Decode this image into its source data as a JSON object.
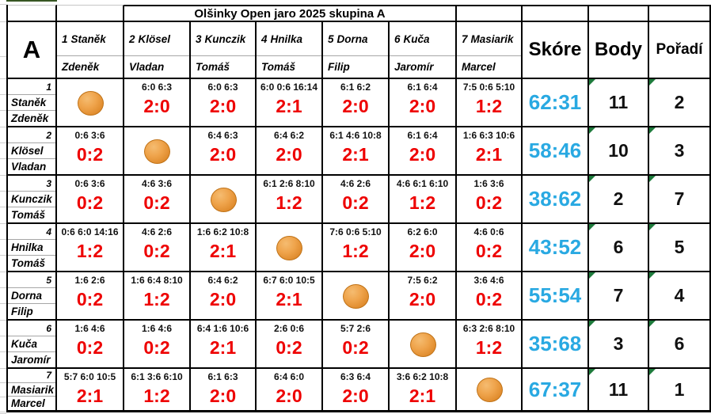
{
  "title": "Olšinky Open jaro 2025 skupina A",
  "group": "A",
  "headers": {
    "skore": "Skóre",
    "body": "Body",
    "poradi": "Pořadí"
  },
  "colors": {
    "result_red": "#ee0000",
    "score_blue": "#29a9e2",
    "triangle_green": "#1e7b3c",
    "ball_orange": "#e08c2e",
    "top_line_green": "#375623"
  },
  "players": [
    {
      "num": "1",
      "surname": "Staněk",
      "first": "Zdeněk"
    },
    {
      "num": "2",
      "surname": "Klösel",
      "first": "Vladan"
    },
    {
      "num": "3",
      "surname": "Kunczik",
      "first": "Tomáš"
    },
    {
      "num": "4",
      "surname": "Hnilka",
      "first": "Tomáš"
    },
    {
      "num": "5",
      "surname": "Dorna",
      "first": "Filip"
    },
    {
      "num": "6",
      "surname": "Kuča",
      "first": "Jaromír"
    },
    {
      "num": "7",
      "surname": "Masiarik",
      "first": "Marcel"
    }
  ],
  "matrix": [
    {
      "skore": "62:31",
      "body": "11",
      "poradi": "2",
      "cells": [
        {
          "self": true
        },
        {
          "sets": "6:0 6:3",
          "result": "2:0"
        },
        {
          "sets": "6:0 6:3",
          "result": "2:0"
        },
        {
          "sets": "6:0 0:6 16:14",
          "result": "2:1"
        },
        {
          "sets": "6:1 6:2",
          "result": "2:0"
        },
        {
          "sets": "6:1 6:4",
          "result": "2:0"
        },
        {
          "sets": "7:5 0:6 5:10",
          "result": "1:2"
        }
      ]
    },
    {
      "skore": "58:46",
      "body": "10",
      "poradi": "3",
      "cells": [
        {
          "sets": "0:6 3:6",
          "result": "0:2"
        },
        {
          "self": true
        },
        {
          "sets": "6:4 6:3",
          "result": "2:0"
        },
        {
          "sets": "6:4 6:2",
          "result": "2:0"
        },
        {
          "sets": "6:1 4:6 10:8",
          "result": "2:1"
        },
        {
          "sets": "6:1 6:4",
          "result": "2:0"
        },
        {
          "sets": "1:6 6:3 10:6",
          "result": "2:1"
        }
      ]
    },
    {
      "skore": "38:62",
      "body": "2",
      "poradi": "7",
      "cells": [
        {
          "sets": "0:6 3:6",
          "result": "0:2"
        },
        {
          "sets": "4:6 3:6",
          "result": "0:2"
        },
        {
          "self": true
        },
        {
          "sets": "6:1 2:6 8:10",
          "result": "1:2"
        },
        {
          "sets": "4:6 2:6",
          "result": "0:2"
        },
        {
          "sets": "4:6 6:1 6:10",
          "result": "1:2"
        },
        {
          "sets": "1:6 3:6",
          "result": "0:2"
        }
      ]
    },
    {
      "skore": "43:52",
      "body": "6",
      "poradi": "5",
      "cells": [
        {
          "sets": "0:6 6:0 14:16",
          "result": "1:2"
        },
        {
          "sets": "4:6 2:6",
          "result": "0:2"
        },
        {
          "sets": "1:6 6:2 10:8",
          "result": "2:1"
        },
        {
          "self": true
        },
        {
          "sets": "7:6 0:6 5:10",
          "result": "1:2"
        },
        {
          "sets": "6:2 6:0",
          "result": "2:0"
        },
        {
          "sets": "4:6 0:6",
          "result": "0:2"
        }
      ]
    },
    {
      "skore": "55:54",
      "body": "7",
      "poradi": "4",
      "cells": [
        {
          "sets": "1:6 2:6",
          "result": "0:2"
        },
        {
          "sets": "1:6 6:4 8:10",
          "result": "1:2"
        },
        {
          "sets": "6:4 6:2",
          "result": "2:0"
        },
        {
          "sets": "6:7 6:0 10:5",
          "result": "2:1"
        },
        {
          "self": true
        },
        {
          "sets": "7:5 6:2",
          "result": "2:0"
        },
        {
          "sets": "3:6 4:6",
          "result": "0:2"
        }
      ]
    },
    {
      "skore": "35:68",
      "body": "3",
      "poradi": "6",
      "cells": [
        {
          "sets": "1:6 4:6",
          "result": "0:2"
        },
        {
          "sets": "1:6 4:6",
          "result": "0:2"
        },
        {
          "sets": "6:4 1:6 10:6",
          "result": "2:1"
        },
        {
          "sets": "2:6 0:6",
          "result": "0:2"
        },
        {
          "sets": "5:7 2:6",
          "result": "0:2"
        },
        {
          "self": true
        },
        {
          "sets": "6:3 2:6 8:10",
          "result": "1:2"
        }
      ]
    },
    {
      "skore": "67:37",
      "body": "11",
      "poradi": "1",
      "cells": [
        {
          "sets": "5:7 6:0 10:5",
          "result": "2:1"
        },
        {
          "sets": "6:1 3:6 6:10",
          "result": "1:2"
        },
        {
          "sets": "6:1 6:3",
          "result": "2:0"
        },
        {
          "sets": "6:4 6:0",
          "result": "2:0"
        },
        {
          "sets": "6:3 6:4",
          "result": "2:0"
        },
        {
          "sets": "3:6 6:2 10:8",
          "result": "2:1"
        },
        {
          "self": true
        }
      ]
    }
  ]
}
